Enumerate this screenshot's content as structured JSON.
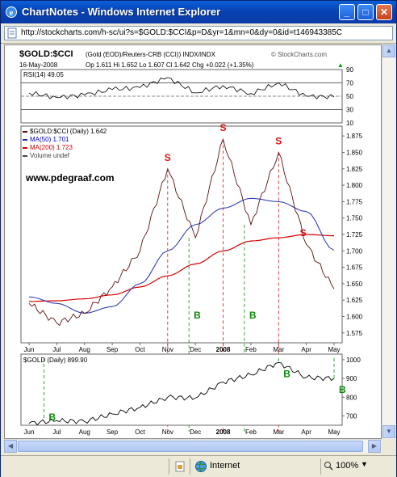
{
  "window": {
    "title": "ChartNotes - Windows Internet Explorer",
    "minimize": "_",
    "maximize": "□",
    "close": "✕",
    "address": "http://stockcharts.com/h-sc/ui?s=$GOLD:$CCI&p=D&yr=1&mn=0&dy=0&id=t146943385C"
  },
  "status": {
    "zone": "Internet",
    "zoom": "100%"
  },
  "header": {
    "symbol": "$GOLD:$CCI",
    "description": "(Gold (EOD)/Reuters-CRB (CCI))  INDX/INDX",
    "credit": "© StockCharts.com",
    "date": "16-May-2008",
    "ohlc": "Op 1.611  Hi 1.652  Lo 1.607  Cl 1.642  Chg +0.022 (+1.35%)",
    "ohlc_arrow": "▲"
  },
  "rsi": {
    "label": "RSI(14) 49.05",
    "ticks": [
      "90",
      "70",
      "50",
      "30",
      "10"
    ]
  },
  "main": {
    "legend": [
      {
        "text": "$GOLD:$CCI (Daily) 1.642",
        "color": "#000000"
      },
      {
        "text": "MA(50) 1.701",
        "color": "#0000cc"
      },
      {
        "text": "MA(200) 1.723",
        "color": "#cc0000"
      },
      {
        "text": "Volume undef",
        "color": "#444444"
      }
    ],
    "watermark": "www.pdegraaf.com",
    "ticks": [
      "1.875",
      "1.850",
      "1.825",
      "1.800",
      "1.775",
      "1.750",
      "1.725",
      "1.700",
      "1.675",
      "1.650",
      "1.625",
      "1.600",
      "1.575"
    ],
    "annotations": [
      "S",
      "S",
      "S",
      "S",
      "B",
      "B"
    ]
  },
  "months": [
    "Jun",
    "Jul",
    "Aug",
    "Sep",
    "Oct",
    "Nov",
    "Dec",
    "2008",
    "Feb",
    "Mar",
    "Apr",
    "May"
  ],
  "gold": {
    "label": "$GOLD (Daily) 899.90",
    "ticks": [
      "1000",
      "900",
      "800",
      "700"
    ],
    "annotations": [
      "B",
      "B",
      "B"
    ]
  },
  "colors": {
    "ratio": "#5a1010",
    "ma50": "#1f2fb0",
    "ma200": "#d40000",
    "sell": "#e01010",
    "buy": "#0a8a0a"
  },
  "chart_data": [
    {
      "type": "line",
      "title": "$GOLD:$CCI (Daily) 1.642",
      "xlabel": "",
      "ylabel": "",
      "categories": [
        "Jun",
        "Jul",
        "Aug",
        "Sep",
        "Oct",
        "Nov",
        "Dec",
        "2008",
        "Feb",
        "Mar",
        "Apr",
        "May"
      ],
      "ylim": [
        1.56,
        1.89
      ],
      "series": [
        {
          "name": "$GOLD:$CCI (Daily) 1.642",
          "values": [
            1.62,
            1.59,
            1.605,
            1.645,
            1.7,
            1.825,
            1.72,
            1.87,
            1.74,
            1.85,
            1.71,
            1.642
          ]
        },
        {
          "name": "MA(50) 1.701",
          "values": [
            1.63,
            1.62,
            1.605,
            1.615,
            1.65,
            1.7,
            1.74,
            1.765,
            1.78,
            1.775,
            1.76,
            1.701
          ]
        },
        {
          "name": "MA(200) 1.723",
          "values": [
            1.623,
            1.624,
            1.627,
            1.633,
            1.645,
            1.662,
            1.68,
            1.7,
            1.715,
            1.72,
            1.725,
            1.723
          ]
        }
      ]
    },
    {
      "type": "line",
      "title": "RSI(14) 49.05",
      "ylim": [
        10,
        90
      ],
      "series": [
        {
          "name": "RSI(14) 49.05",
          "values": [
            55,
            48,
            52,
            60,
            63,
            78,
            55,
            66,
            54,
            70,
            50,
            49
          ]
        }
      ]
    },
    {
      "type": "line",
      "title": "$GOLD (Daily) 899.90",
      "ylim": [
        650,
        1030
      ],
      "series": [
        {
          "name": "$GOLD (Daily) 899.90",
          "values": [
            660,
            675,
            670,
            710,
            745,
            800,
            795,
            880,
            920,
            985,
            905,
            899.9
          ]
        }
      ]
    }
  ]
}
